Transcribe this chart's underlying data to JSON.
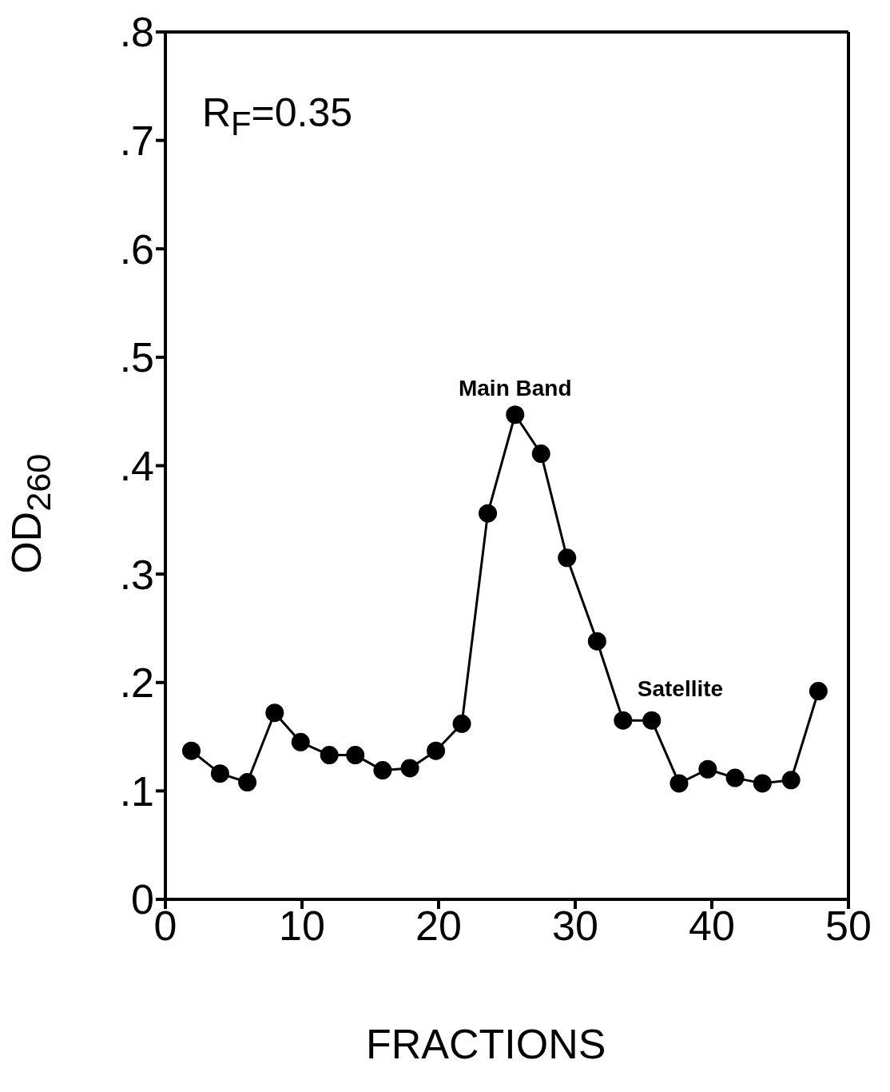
{
  "chart_data": {
    "type": "line",
    "xlabel": "FRACTIONS",
    "ylabel": "OD$_{260}$",
    "annotations": [
      "R$_{F}$=0.35",
      {
        "text": "Main Band",
        "x": 25.6,
        "y": 0.447
      },
      {
        "text": "Satellite",
        "x": 35.6,
        "y": 0.165
      }
    ],
    "xlim": [
      0,
      50
    ],
    "xticks": [
      0,
      10,
      20,
      30,
      40,
      50
    ],
    "ylim": [
      0,
      0.8
    ],
    "yticks": [
      {
        "value": 0,
        "label": "0"
      },
      {
        "value": 0.1,
        "label": ".1"
      },
      {
        "value": 0.2,
        "label": ".2"
      },
      {
        "value": 0.3,
        "label": ".3"
      },
      {
        "value": 0.4,
        "label": ".4"
      },
      {
        "value": 0.5,
        "label": ".5"
      },
      {
        "value": 0.6,
        "label": ".6"
      },
      {
        "value": 0.7,
        "label": ".7"
      },
      {
        "value": 0.8,
        "label": ".8"
      }
    ],
    "x": [
      1.9,
      4.0,
      6.0,
      8.0,
      9.9,
      12.0,
      13.9,
      15.9,
      17.9,
      19.8,
      21.7,
      23.6,
      25.6,
      27.5,
      29.4,
      31.6,
      33.5,
      35.6,
      37.6,
      39.7,
      41.7,
      43.7,
      45.8,
      47.8
    ],
    "series": [
      {
        "color": "#000000",
        "values": [
          0.137,
          0.116,
          0.108,
          0.172,
          0.145,
          0.133,
          0.133,
          0.119,
          0.121,
          0.137,
          0.162,
          0.356,
          0.447,
          0.411,
          0.315,
          0.238,
          0.165,
          0.165,
          0.107,
          0.12,
          0.112,
          0.107,
          0.11,
          0.192
        ]
      }
    ],
    "marker": "circle",
    "line_style": "solid",
    "legend": false
  }
}
